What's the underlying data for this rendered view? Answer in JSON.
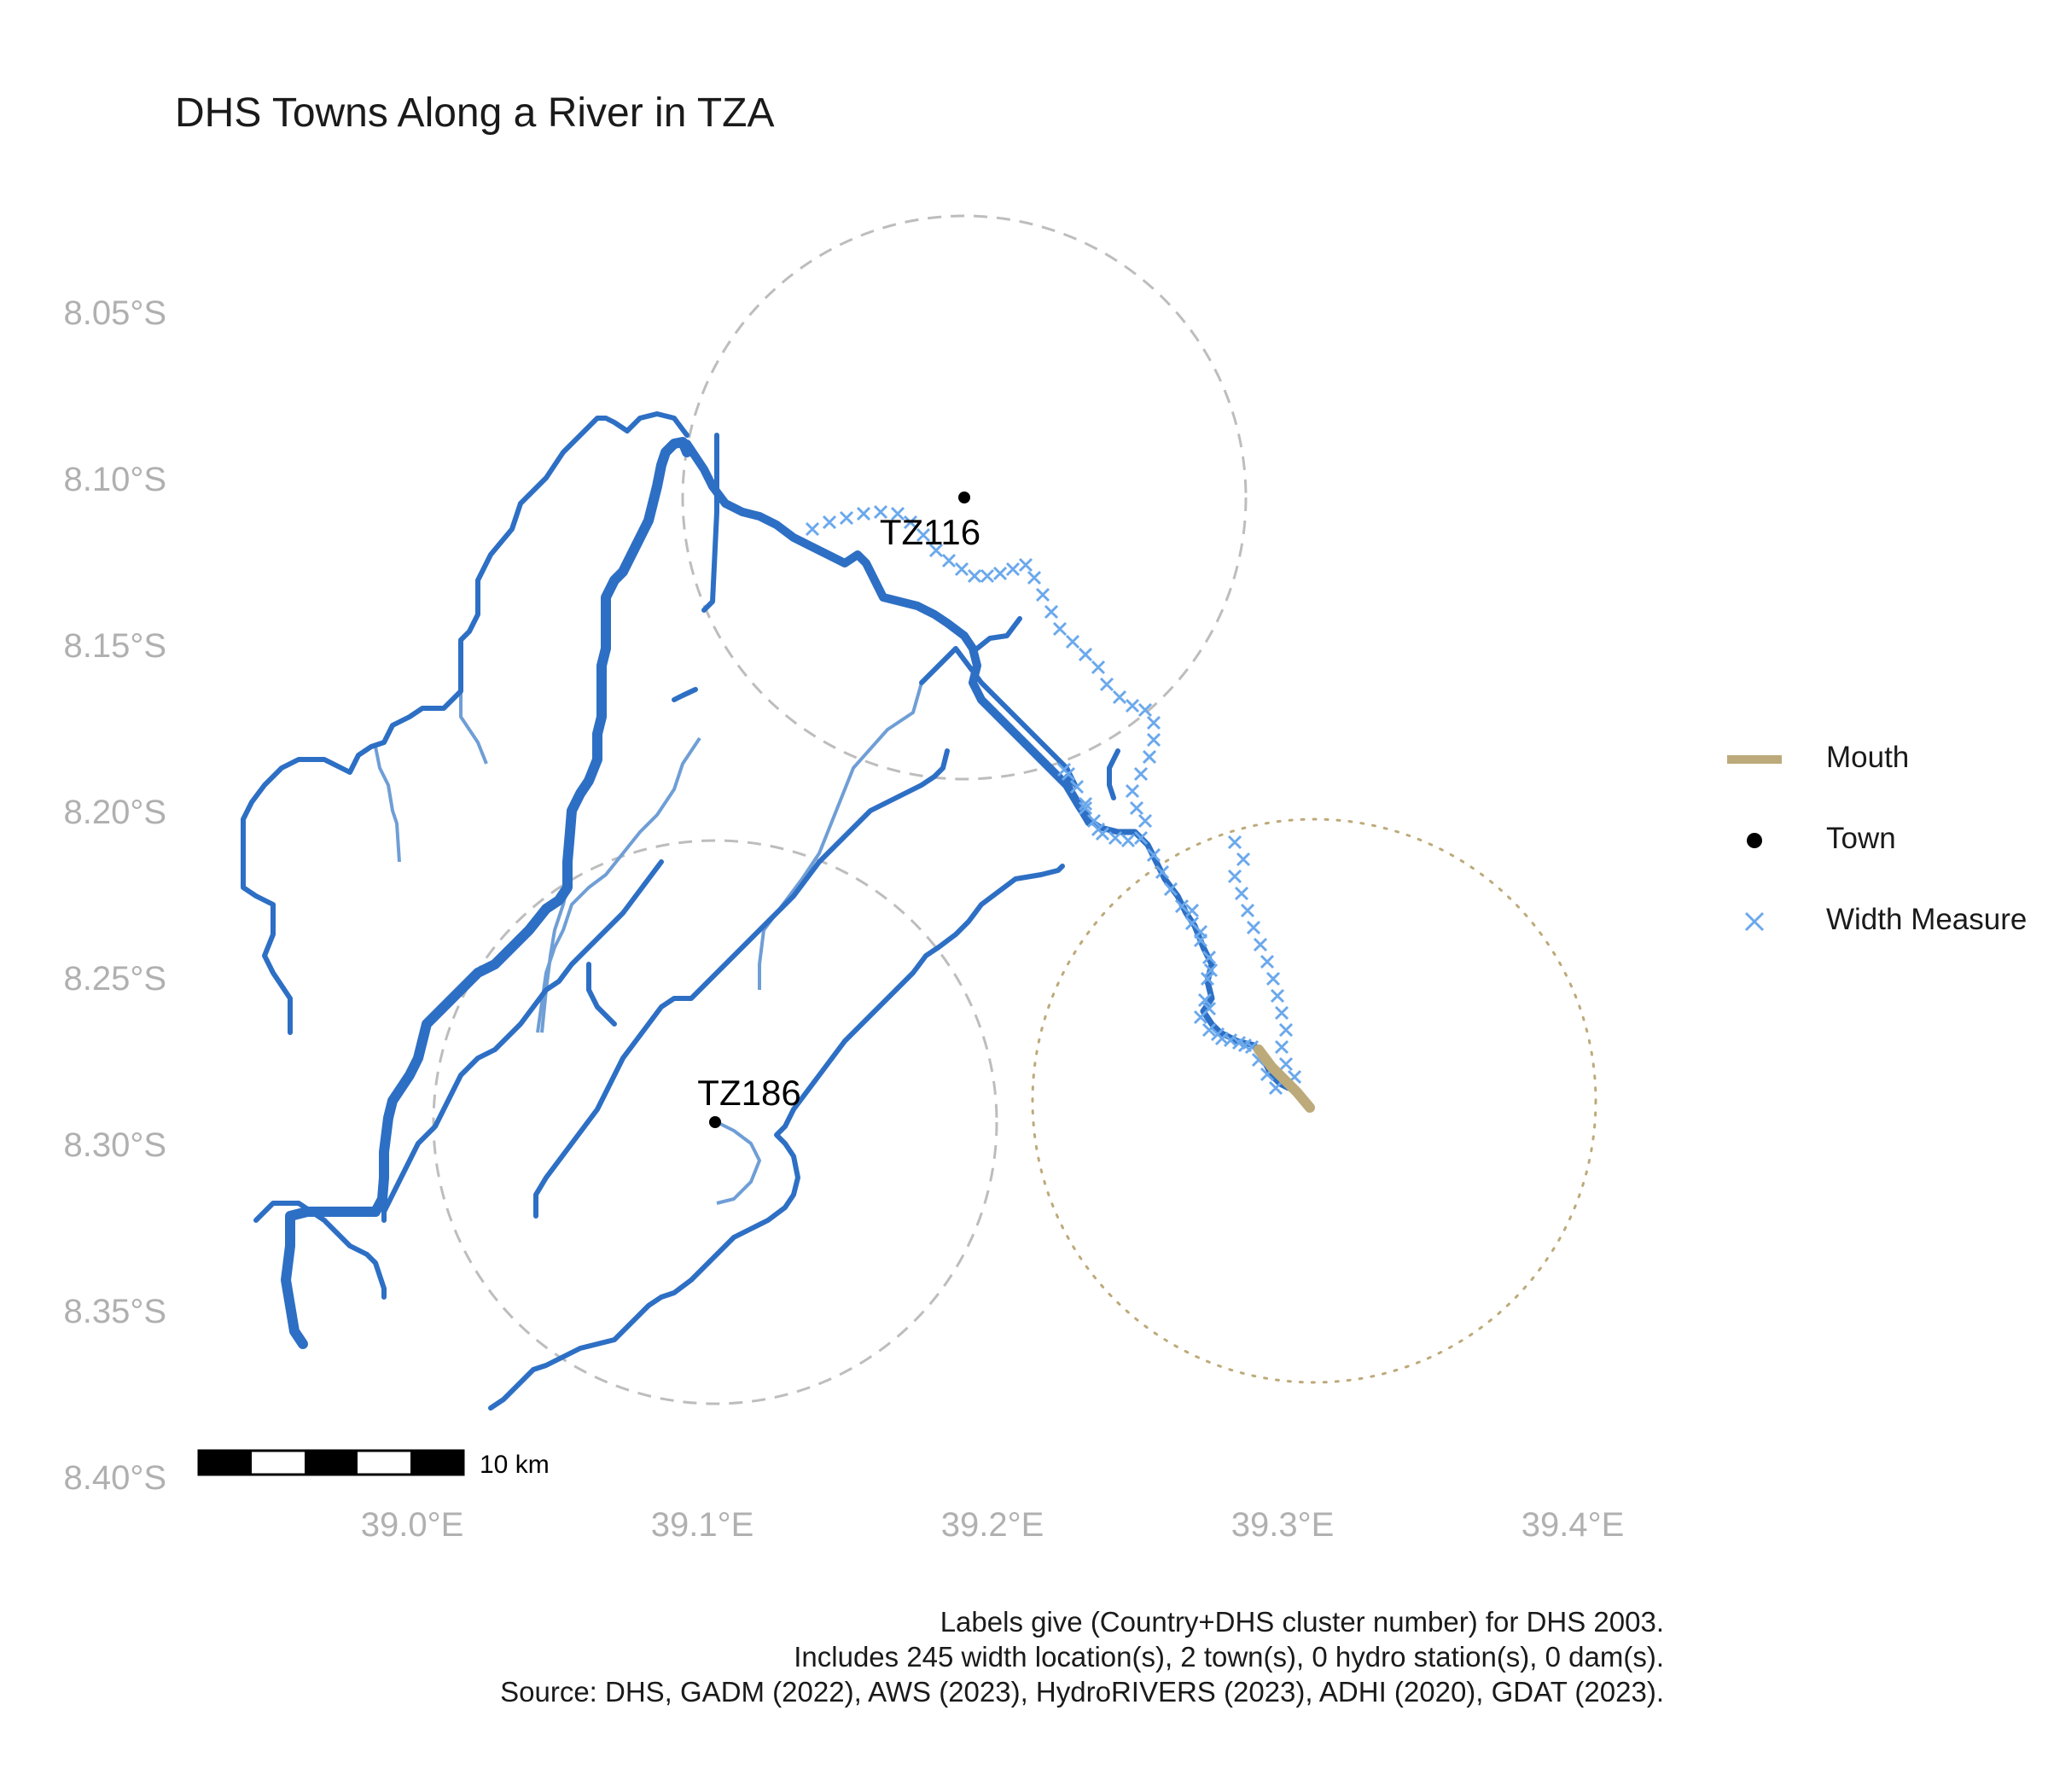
{
  "title": "DHS Towns Along a River in TZA",
  "caption": [
    "Labels give (Country+DHS cluster number) for DHS 2003.",
    "Includes 245 width location(s), 2 town(s), 0 hydro station(s), 0 dam(s).",
    "Source: DHS, GADM (2022), AWS (2023), HydroRIVERS (2023), ADHI (2020), GDAT (2023)."
  ],
  "colors": {
    "river_main": "#2d6fc4",
    "river_minor": "#6f9ed6",
    "width_measure": "#6aa8ec",
    "mouth": "#bdaa7a",
    "town": "#000000",
    "buffer_town": "#bdbdbd",
    "buffer_mouth": "#bdaa7a"
  },
  "axes": {
    "y_ticks": [
      "8.05°S",
      "8.10°S",
      "8.15°S",
      "8.20°S",
      "8.25°S",
      "8.30°S",
      "8.35°S",
      "8.40°S"
    ],
    "x_ticks": [
      "39.0°E",
      "39.1°E",
      "39.2°E",
      "39.3°E",
      "39.4°E"
    ]
  },
  "legend": [
    {
      "label": "Mouth",
      "icon": "line-swatch-icon"
    },
    {
      "label": "Town",
      "icon": "dot-icon"
    },
    {
      "label": "Width Measure",
      "icon": "cross-icon"
    }
  ],
  "towns": [
    {
      "label": "TZ116",
      "lon": 39.19,
      "lat": -8.106
    },
    {
      "label": "TZ186",
      "lon": 39.104,
      "lat": -8.296
    }
  ],
  "scale_bar": {
    "label": "10 km"
  }
}
